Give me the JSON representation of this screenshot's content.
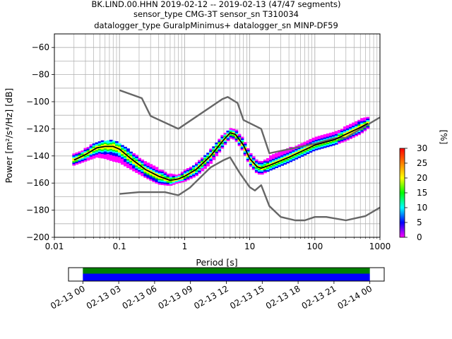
{
  "header": {
    "line1": "BK.LIND.00.HHN   2019-02-12 -- 2019-02-13  (47/47 segments)",
    "line2": "sensor_type CMG-3T sensor_sn T310034",
    "line3": "datalogger_type GuralpMinimus+ datalogger_sn MINP-DF59"
  },
  "chart_data": [
    {
      "type": "heatmap",
      "xlabel": "Period [s]",
      "ylabel": "Power [m²/s⁴/Hz] [dB]",
      "xscale": "log",
      "xlim": [
        0.01,
        1000
      ],
      "ylim": [
        -200,
        -50
      ],
      "grid": true,
      "xticks": [
        {
          "v": 0.01,
          "label": "0.01"
        },
        {
          "v": 0.1,
          "label": "0.1"
        },
        {
          "v": 1,
          "label": "1"
        },
        {
          "v": 10,
          "label": "10"
        },
        {
          "v": 100,
          "label": "100"
        },
        {
          "v": 1000,
          "label": "1000"
        }
      ],
      "yticks": [
        {
          "v": -60,
          "label": "−60"
        },
        {
          "v": -80,
          "label": "−80"
        },
        {
          "v": -100,
          "label": "−100"
        },
        {
          "v": -120,
          "label": "−120"
        },
        {
          "v": -140,
          "label": "−140"
        },
        {
          "v": -160,
          "label": "−160"
        },
        {
          "v": -180,
          "label": "−180"
        },
        {
          "v": -200,
          "label": "−200"
        }
      ],
      "series": [
        {
          "name": "",
          "color": "#666666",
          "x": [
            0.1,
            0.22,
            0.3,
            0.8,
            3.8,
            4.6,
            6.5,
            8,
            15,
            20,
            100,
            200,
            300,
            1000
          ],
          "y": [
            -91.5,
            -97.4,
            -110.5,
            -120,
            -98,
            -96.5,
            -101,
            -113.5,
            -120,
            -138,
            -131,
            -127,
            -126.5,
            -111.5
          ]
        },
        {
          "name": "",
          "color": "#666666",
          "x": [
            0.1,
            0.2,
            0.5,
            0.8,
            1.2,
            2.5,
            4,
            5,
            7,
            10,
            12,
            15,
            20,
            30,
            50,
            70,
            100,
            150,
            300,
            600,
            1000
          ],
          "y": [
            -168,
            -166.7,
            -166.7,
            -169,
            -163.5,
            -148.5,
            -143,
            -141,
            -152.5,
            -163,
            -165.5,
            -161.5,
            -177,
            -185,
            -187.5,
            -187.5,
            -185,
            -185,
            -187.5,
            -184.3,
            -178
          ]
        },
        {
          "name": "",
          "color": "#000000",
          "x": [
            0.02,
            0.03,
            0.045,
            0.06,
            0.08,
            0.1,
            0.15,
            0.25,
            0.4,
            0.6,
            0.8,
            1,
            1.5,
            2.5,
            4,
            5,
            6,
            8,
            10,
            13,
            15,
            20,
            40,
            100,
            200,
            300,
            500,
            650
          ],
          "y": [
            -143,
            -139,
            -134,
            -133,
            -133,
            -135,
            -142,
            -150,
            -155,
            -158,
            -157,
            -155,
            -150,
            -140,
            -128,
            -123,
            -124,
            -132,
            -142,
            -148,
            -149,
            -147,
            -141,
            -132,
            -128,
            -124,
            -119,
            -116
          ]
        }
      ],
      "pdf_band": {
        "x": [
          0.02,
          0.03,
          0.045,
          0.06,
          0.08,
          0.1,
          0.15,
          0.25,
          0.4,
          0.6,
          0.8,
          1,
          1.5,
          2.5,
          4,
          5,
          6,
          8,
          10,
          13,
          15,
          20,
          40,
          100,
          200,
          300,
          500,
          650
        ],
        "low": [
          -147,
          -144,
          -141,
          -142,
          -144,
          -145,
          -150,
          -156,
          -161,
          -162,
          -160,
          -159,
          -155,
          -146,
          -133,
          -127,
          -128,
          -137,
          -147,
          -153,
          -154,
          -151,
          -145,
          -136,
          -132,
          -129,
          -124,
          -120
        ],
        "high": [
          -139,
          -135,
          -130,
          -129,
          -129,
          -131,
          -137,
          -145,
          -150,
          -154,
          -154,
          -151,
          -146,
          -136,
          -124,
          -120,
          -120,
          -128,
          -137,
          -144,
          -145,
          -141,
          -135,
          -127,
          -123,
          -119,
          -113,
          -112
        ]
      }
    },
    {
      "type": "colorbar",
      "label": "[%]",
      "range": [
        0,
        30
      ],
      "ticks": [
        "0",
        "5",
        "10",
        "15",
        "20",
        "25",
        "30"
      ],
      "colors": [
        "#ff00ff",
        "#0000ff",
        "#00ffff",
        "#00ff00",
        "#ffff00",
        "#ff8000",
        "#ff0000"
      ]
    },
    {
      "type": "timeline",
      "tick_labels": [
        "02-13 00",
        "02-13 03",
        "02-13 06",
        "02-13 09",
        "02-13 12",
        "02-13 15",
        "02-13 18",
        "02-13 21",
        "02-14 00"
      ],
      "tick_hours": [
        0,
        3,
        6,
        9,
        12,
        15,
        18,
        21,
        24
      ],
      "xlim_hours": [
        -1.2,
        25.2
      ],
      "coverage_hours": [
        0,
        24
      ],
      "colors": [
        "#008000",
        "#0000ff"
      ]
    }
  ]
}
